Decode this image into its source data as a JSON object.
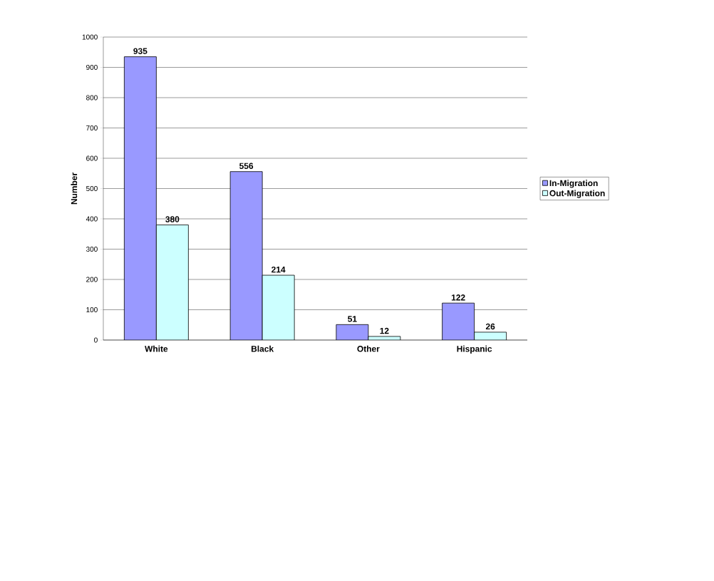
{
  "chart_data": {
    "type": "bar",
    "ylabel": "Number",
    "categories": [
      "White",
      "Black",
      "Other",
      "Hispanic"
    ],
    "series": [
      {
        "name": "In-Migration",
        "color": "#9999ff",
        "values": [
          935,
          556,
          51,
          122
        ]
      },
      {
        "name": "Out-Migration",
        "color": "#ccffff",
        "values": [
          380,
          214,
          12,
          26
        ]
      }
    ],
    "ylim": [
      0,
      1000
    ],
    "yticks": [
      0,
      100,
      200,
      300,
      400,
      500,
      600,
      700,
      800,
      900,
      1000
    ],
    "grid": "y",
    "legend": "right",
    "data_labels": true
  }
}
